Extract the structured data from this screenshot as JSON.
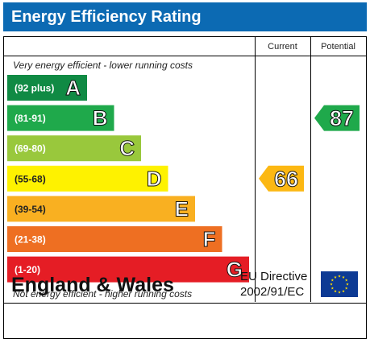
{
  "header": {
    "title": "Energy Efficiency Rating"
  },
  "columns": {
    "current": "Current",
    "potential": "Potential"
  },
  "notes": {
    "top": "Very energy efficient - lower running costs",
    "bottom": "Not energy efficient - higher running costs"
  },
  "footer": {
    "region": "England & Wales",
    "directive_line1": "EU Directive",
    "directive_line2": "2002/91/EC"
  },
  "chart_data": {
    "type": "bar",
    "categories": [
      "A",
      "B",
      "C",
      "D",
      "E",
      "F",
      "G"
    ],
    "bands": [
      {
        "letter": "A",
        "range": "(92 plus)",
        "color": "#108a44"
      },
      {
        "letter": "B",
        "range": "(81-91)",
        "color": "#1fa94b"
      },
      {
        "letter": "C",
        "range": "(69-80)",
        "color": "#99c83c"
      },
      {
        "letter": "D",
        "range": "(55-68)",
        "color": "#fef200"
      },
      {
        "letter": "E",
        "range": "(39-54)",
        "color": "#f9b021"
      },
      {
        "letter": "F",
        "range": "(21-38)",
        "color": "#ee6f22"
      },
      {
        "letter": "G",
        "range": "(1-20)",
        "color": "#e51d25"
      }
    ],
    "current": {
      "value": 66,
      "band": "D",
      "color": "#fcb813"
    },
    "potential": {
      "value": 87,
      "band": "B",
      "color": "#1fa94b"
    },
    "title": "Energy Efficiency Rating"
  }
}
